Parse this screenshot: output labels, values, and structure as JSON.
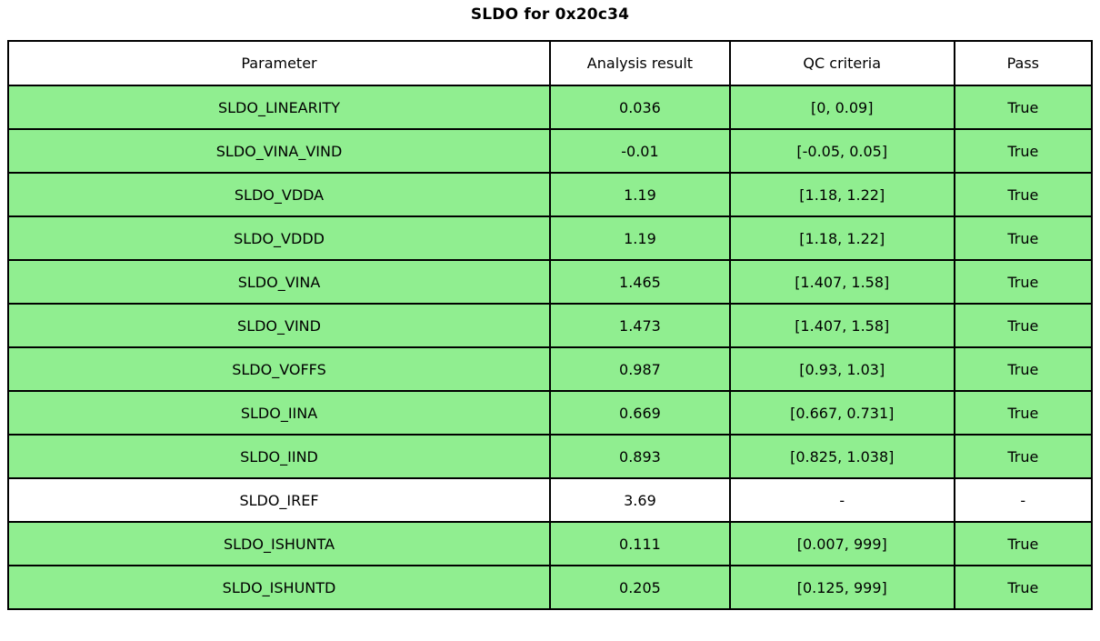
{
  "title": "SLDO for 0x20c34",
  "colors": {
    "pass_row_green": "#90EE90",
    "neutral_row_white": "#ffffff",
    "border_black": "#000000"
  },
  "chart_data": {
    "type": "table",
    "title": "SLDO for 0x20c34",
    "columns": [
      "Parameter",
      "Analysis result",
      "QC criteria",
      "Pass"
    ],
    "rows": [
      {
        "parameter": "SLDO_LINEARITY",
        "analysis_result": "0.036",
        "qc_criteria": "[0, 0.09]",
        "pass": "True",
        "highlight": "green"
      },
      {
        "parameter": "SLDO_VINA_VIND",
        "analysis_result": "-0.01",
        "qc_criteria": "[-0.05, 0.05]",
        "pass": "True",
        "highlight": "green"
      },
      {
        "parameter": "SLDO_VDDA",
        "analysis_result": "1.19",
        "qc_criteria": "[1.18, 1.22]",
        "pass": "True",
        "highlight": "green"
      },
      {
        "parameter": "SLDO_VDDD",
        "analysis_result": "1.19",
        "qc_criteria": "[1.18, 1.22]",
        "pass": "True",
        "highlight": "green"
      },
      {
        "parameter": "SLDO_VINA",
        "analysis_result": "1.465",
        "qc_criteria": "[1.407, 1.58]",
        "pass": "True",
        "highlight": "green"
      },
      {
        "parameter": "SLDO_VIND",
        "analysis_result": "1.473",
        "qc_criteria": "[1.407, 1.58]",
        "pass": "True",
        "highlight": "green"
      },
      {
        "parameter": "SLDO_VOFFS",
        "analysis_result": "0.987",
        "qc_criteria": "[0.93, 1.03]",
        "pass": "True",
        "highlight": "green"
      },
      {
        "parameter": "SLDO_IINA",
        "analysis_result": "0.669",
        "qc_criteria": "[0.667, 0.731]",
        "pass": "True",
        "highlight": "green"
      },
      {
        "parameter": "SLDO_IIND",
        "analysis_result": "0.893",
        "qc_criteria": "[0.825, 1.038]",
        "pass": "True",
        "highlight": "green"
      },
      {
        "parameter": "SLDO_IREF",
        "analysis_result": "3.69",
        "qc_criteria": "-",
        "pass": "-",
        "highlight": "white"
      },
      {
        "parameter": "SLDO_ISHUNTA",
        "analysis_result": "0.111",
        "qc_criteria": "[0.007, 999]",
        "pass": "True",
        "highlight": "green"
      },
      {
        "parameter": "SLDO_ISHUNTD",
        "analysis_result": "0.205",
        "qc_criteria": "[0.125, 999]",
        "pass": "True",
        "highlight": "green"
      }
    ]
  }
}
